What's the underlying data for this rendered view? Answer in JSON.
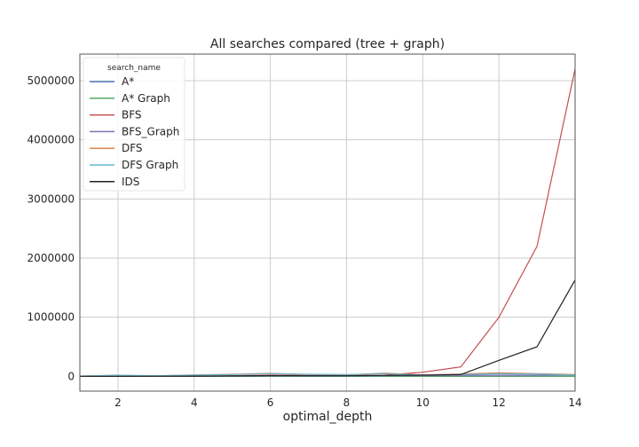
{
  "chart_data": {
    "type": "line",
    "title": "All searches compared (tree + graph)",
    "xlabel": "optimal_depth",
    "ylabel": "",
    "xlim": [
      1,
      14
    ],
    "ylim": [
      -250000,
      5450000
    ],
    "xticks": [
      2,
      4,
      6,
      8,
      10,
      12,
      14
    ],
    "yticks": [
      0,
      1000000,
      2000000,
      3000000,
      4000000,
      5000000
    ],
    "grid": true,
    "legend": {
      "title": "search_name",
      "placement": "top-left"
    },
    "x": [
      1,
      2,
      3,
      4,
      5,
      6,
      7,
      8,
      9,
      10,
      11,
      12,
      13,
      14
    ],
    "series": [
      {
        "name": "A*",
        "color": "#4c72b0",
        "values": [
          0,
          2,
          6,
          10,
          20,
          40,
          70,
          120,
          200,
          350,
          600,
          1000,
          1700,
          2800
        ]
      },
      {
        "name": "A* Graph",
        "color": "#55a868",
        "values": [
          0,
          2,
          6,
          10,
          18,
          35,
          60,
          100,
          160,
          270,
          450,
          750,
          1200,
          2000
        ]
      },
      {
        "name": "BFS",
        "color": "#c44e52",
        "values": [
          0,
          1000,
          2000,
          5000,
          10000,
          20000,
          15000,
          15000,
          20000,
          70000,
          160000,
          1000000,
          2200000,
          5200000
        ]
      },
      {
        "name": "BFS_Graph",
        "color": "#8172b2",
        "values": [
          0,
          500,
          1500,
          3000,
          6000,
          10000,
          9000,
          9000,
          12000,
          15000,
          18000,
          20000,
          22000,
          25000
        ]
      },
      {
        "name": "DFS",
        "color": "#dd8452",
        "values": [
          5000,
          15000,
          8000,
          25000,
          35000,
          50000,
          30000,
          25000,
          55000,
          25000,
          40000,
          60000,
          45000,
          30000
        ]
      },
      {
        "name": "DFS Graph",
        "color": "#64b5cd",
        "values": [
          3000,
          20000,
          10000,
          20000,
          30000,
          45000,
          35000,
          30000,
          45000,
          20000,
          30000,
          45000,
          40000,
          20000
        ]
      },
      {
        "name": "IDS",
        "color": "#222222",
        "values": [
          0,
          500,
          1500,
          3000,
          6000,
          12000,
          10000,
          10000,
          15000,
          20000,
          30000,
          270000,
          500000,
          1630000
        ]
      }
    ]
  }
}
